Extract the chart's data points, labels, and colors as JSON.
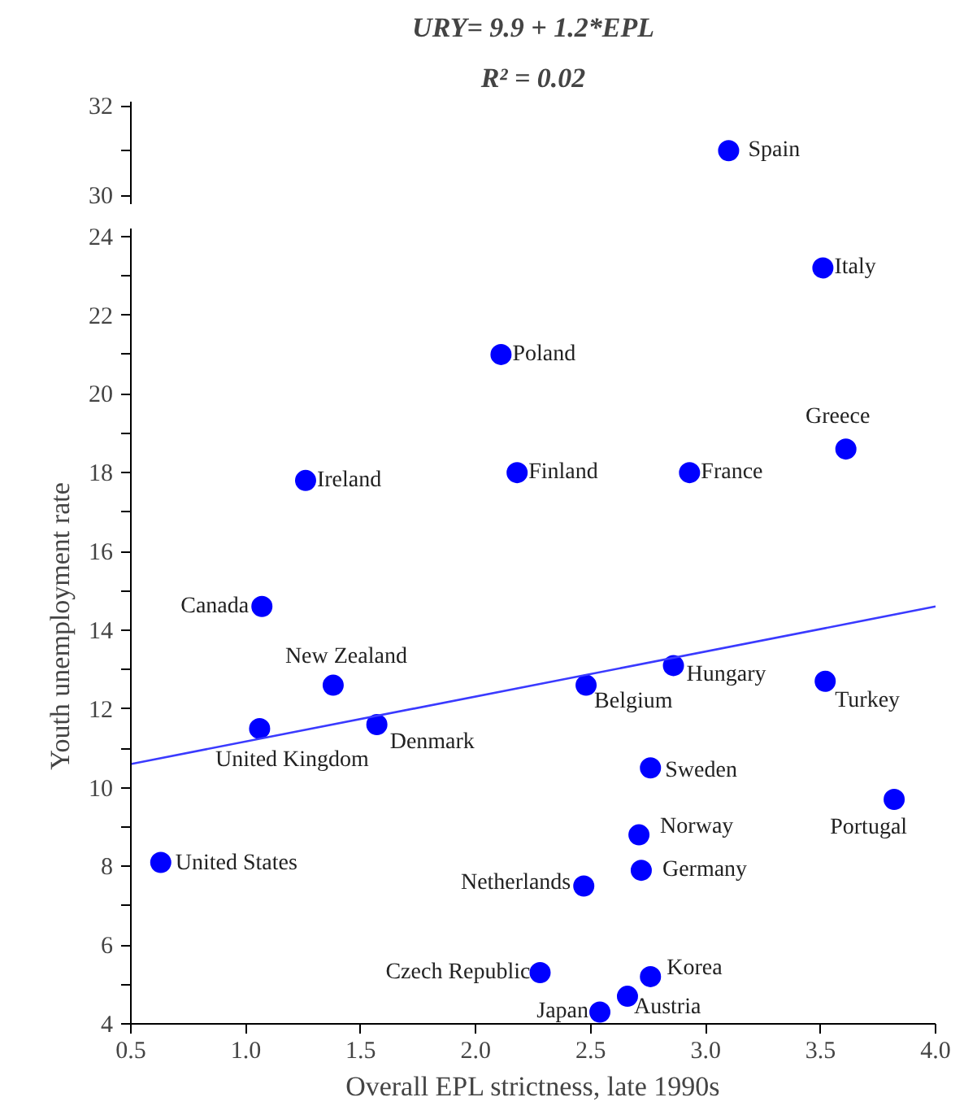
{
  "chart_data": [
    {
      "type": "scatter",
      "title": "URY= 9.9 + 1.2*EPL",
      "subtitle": "R² = 0.02",
      "xlim": [
        0.5,
        4.0
      ],
      "ylim": [
        29.8,
        32.1
      ],
      "yticks": [
        30,
        {
          "value": 31,
          "label": null
        },
        32
      ],
      "tick_labels": "y",
      "grid": false,
      "series": [
        {
          "color": "#0000ff",
          "marker": "circle",
          "x": [
            3.1
          ],
          "values": [
            31.0
          ]
        }
      ],
      "annotations": [
        {
          "text": "Spain",
          "x": 3.1,
          "y": 31.0
        }
      ]
    },
    {
      "type": "scatter",
      "xlabel": "Overall EPL strictness, late 1990s",
      "ylabel": "Youth unemployment rate",
      "xlim": [
        0.5,
        4.0
      ],
      "ylim": [
        4,
        24.2
      ],
      "xticks": [
        {
          "value": 0.5,
          "label": "0.5"
        },
        {
          "value": 1.0,
          "label": "1.0"
        },
        {
          "value": 1.5,
          "label": "1.5"
        },
        {
          "value": 2.0,
          "label": "2.0"
        },
        {
          "value": 2.5,
          "label": "2.5"
        },
        {
          "value": 3.0,
          "label": "3.0"
        },
        {
          "value": 3.5,
          "label": "3.5"
        },
        {
          "value": 4.0,
          "label": "4.0"
        }
      ],
      "yticks": [
        4,
        {
          "value": 5,
          "label": null
        },
        6,
        {
          "value": 7,
          "label": null
        },
        8,
        {
          "value": 9,
          "label": null
        },
        10,
        {
          "value": 11,
          "label": null
        },
        12,
        {
          "value": 13,
          "label": null
        },
        14,
        {
          "value": 15,
          "label": null
        },
        16,
        {
          "value": 17,
          "label": null
        },
        18,
        {
          "value": 19,
          "label": null
        },
        20,
        {
          "value": 21,
          "label": null
        },
        22,
        {
          "value": 23,
          "label": null
        },
        24
      ],
      "grid": false,
      "series": [
        {
          "color": "#0000ff",
          "marker": "circle",
          "x": [
            3.51,
            2.11,
            3.61,
            2.18,
            2.93,
            1.26,
            1.07,
            1.38,
            2.86,
            2.48,
            3.52,
            1.06,
            1.57,
            2.76,
            3.82,
            2.71,
            2.72,
            0.63,
            2.47,
            2.28,
            2.76,
            2.66,
            2.54
          ],
          "values": [
            23.2,
            21.0,
            18.6,
            18.0,
            18.0,
            17.8,
            14.6,
            12.6,
            13.1,
            12.6,
            12.7,
            11.5,
            11.6,
            10.5,
            9.7,
            8.8,
            7.9,
            8.1,
            7.5,
            5.3,
            5.2,
            4.7,
            4.3
          ]
        },
        {
          "type": "line",
          "color": "#3a3aff",
          "marker": "none",
          "line_style": "solid",
          "x": [
            0.5,
            4.0
          ],
          "values": [
            10.6,
            14.6
          ]
        }
      ],
      "annotations": [
        {
          "text": "Italy",
          "x": 3.51,
          "y": 23.2
        },
        {
          "text": "Poland",
          "x": 2.11,
          "y": 21.0
        },
        {
          "text": "Greece",
          "x": 3.61,
          "y": 18.6
        },
        {
          "text": "Finland",
          "x": 2.18,
          "y": 18.0
        },
        {
          "text": "France",
          "x": 2.93,
          "y": 18.0
        },
        {
          "text": "Ireland",
          "x": 1.26,
          "y": 17.8
        },
        {
          "text": "Canada",
          "x": 1.07,
          "y": 14.6
        },
        {
          "text": "New Zealand",
          "x": 1.38,
          "y": 12.6
        },
        {
          "text": "Hungary",
          "x": 2.86,
          "y": 13.1
        },
        {
          "text": "Belgium",
          "x": 2.48,
          "y": 12.6
        },
        {
          "text": "Turkey",
          "x": 3.52,
          "y": 12.7
        },
        {
          "text": "United Kingdom",
          "x": 1.06,
          "y": 11.5
        },
        {
          "text": "Denmark",
          "x": 1.57,
          "y": 11.6
        },
        {
          "text": "Sweden",
          "x": 2.76,
          "y": 10.5
        },
        {
          "text": "Portugal",
          "x": 3.82,
          "y": 9.7
        },
        {
          "text": "Norway",
          "x": 2.71,
          "y": 8.8
        },
        {
          "text": "Germany",
          "x": 2.72,
          "y": 7.9
        },
        {
          "text": "United States",
          "x": 0.63,
          "y": 8.1
        },
        {
          "text": "Netherlands",
          "x": 2.47,
          "y": 7.5
        },
        {
          "text": "Czech Republic",
          "x": 2.28,
          "y": 5.3
        },
        {
          "text": "Korea",
          "x": 2.76,
          "y": 5.2
        },
        {
          "text": "Austria",
          "x": 2.66,
          "y": 4.7
        },
        {
          "text": "Japan",
          "x": 2.54,
          "y": 4.3
        }
      ]
    }
  ]
}
